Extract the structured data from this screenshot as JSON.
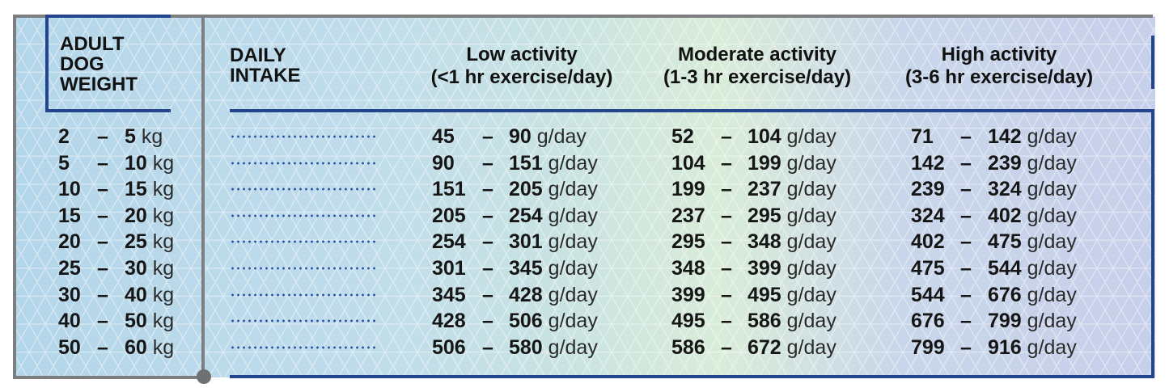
{
  "headers": {
    "weight": [
      "ADULT",
      "DOG",
      "WEIGHT"
    ],
    "intake": [
      "DAILY",
      "INTAKE"
    ],
    "low": [
      "Low activity",
      "(<1 hr exercise/day)"
    ],
    "moderate": [
      "Moderate activity",
      "(1-3 hr exercise/day)"
    ],
    "high": [
      "High activity",
      "(3-6 hr exercise/day)"
    ]
  },
  "units": {
    "weight": "kg",
    "intake": "g/day"
  },
  "dash": "–",
  "rows": [
    {
      "w": [
        "2",
        "5"
      ],
      "low": [
        "45",
        "90"
      ],
      "mod": [
        "52",
        "104"
      ],
      "high": [
        "71",
        "142"
      ]
    },
    {
      "w": [
        "5",
        "10"
      ],
      "low": [
        "90",
        "151"
      ],
      "mod": [
        "104",
        "199"
      ],
      "high": [
        "142",
        "239"
      ]
    },
    {
      "w": [
        "10",
        "15"
      ],
      "low": [
        "151",
        "205"
      ],
      "mod": [
        "199",
        "237"
      ],
      "high": [
        "239",
        "324"
      ]
    },
    {
      "w": [
        "15",
        "20"
      ],
      "low": [
        "205",
        "254"
      ],
      "mod": [
        "237",
        "295"
      ],
      "high": [
        "324",
        "402"
      ]
    },
    {
      "w": [
        "20",
        "25"
      ],
      "low": [
        "254",
        "301"
      ],
      "mod": [
        "295",
        "348"
      ],
      "high": [
        "402",
        "475"
      ]
    },
    {
      "w": [
        "25",
        "30"
      ],
      "low": [
        "301",
        "345"
      ],
      "mod": [
        "348",
        "399"
      ],
      "high": [
        "475",
        "544"
      ]
    },
    {
      "w": [
        "30",
        "40"
      ],
      "low": [
        "345",
        "428"
      ],
      "mod": [
        "399",
        "495"
      ],
      "high": [
        "544",
        "676"
      ]
    },
    {
      "w": [
        "40",
        "50"
      ],
      "low": [
        "428",
        "506"
      ],
      "mod": [
        "495",
        "586"
      ],
      "high": [
        "676",
        "799"
      ]
    },
    {
      "w": [
        "50",
        "60"
      ],
      "low": [
        "506",
        "580"
      ],
      "mod": [
        "586",
        "672"
      ],
      "high": [
        "799",
        "916"
      ]
    }
  ]
}
